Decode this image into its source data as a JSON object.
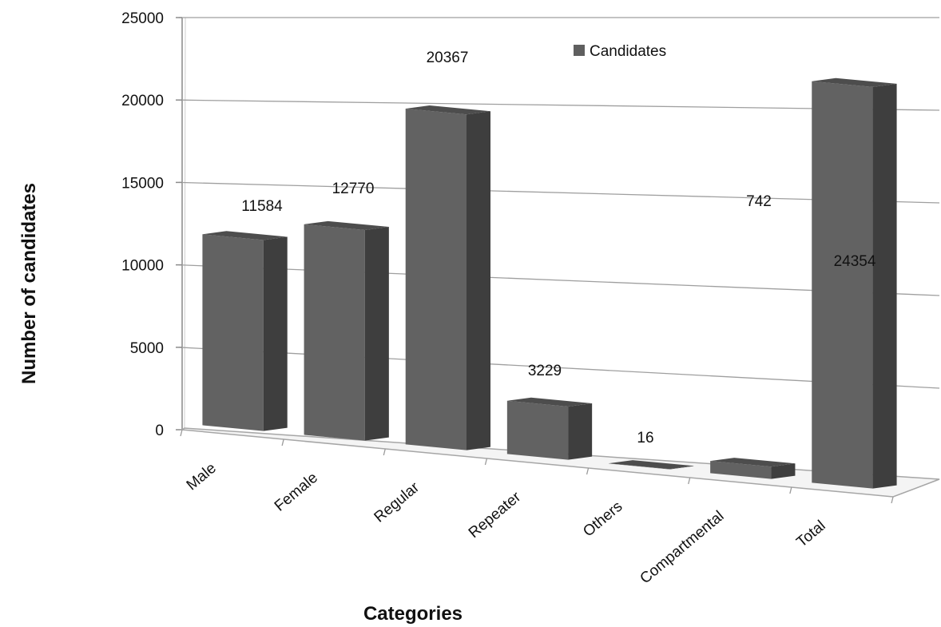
{
  "chart_data": {
    "type": "bar",
    "categories": [
      "Male",
      "Female",
      "Regular",
      "Repeater",
      "Others",
      "Compartmental",
      "Total"
    ],
    "series": [
      {
        "name": "Candidates",
        "values": [
          11584,
          12770,
          20367,
          3229,
          16,
          742,
          24354
        ]
      }
    ],
    "title": "",
    "xlabel": "Categories",
    "ylabel": "Number of candidates",
    "yticks": [
      "0",
      "5000",
      "10000",
      "15000",
      "20000",
      "25000"
    ],
    "ylim": [
      0,
      25000
    ],
    "grid": true,
    "legend_position": "top-right",
    "bar_color": "#5f5f5f"
  }
}
